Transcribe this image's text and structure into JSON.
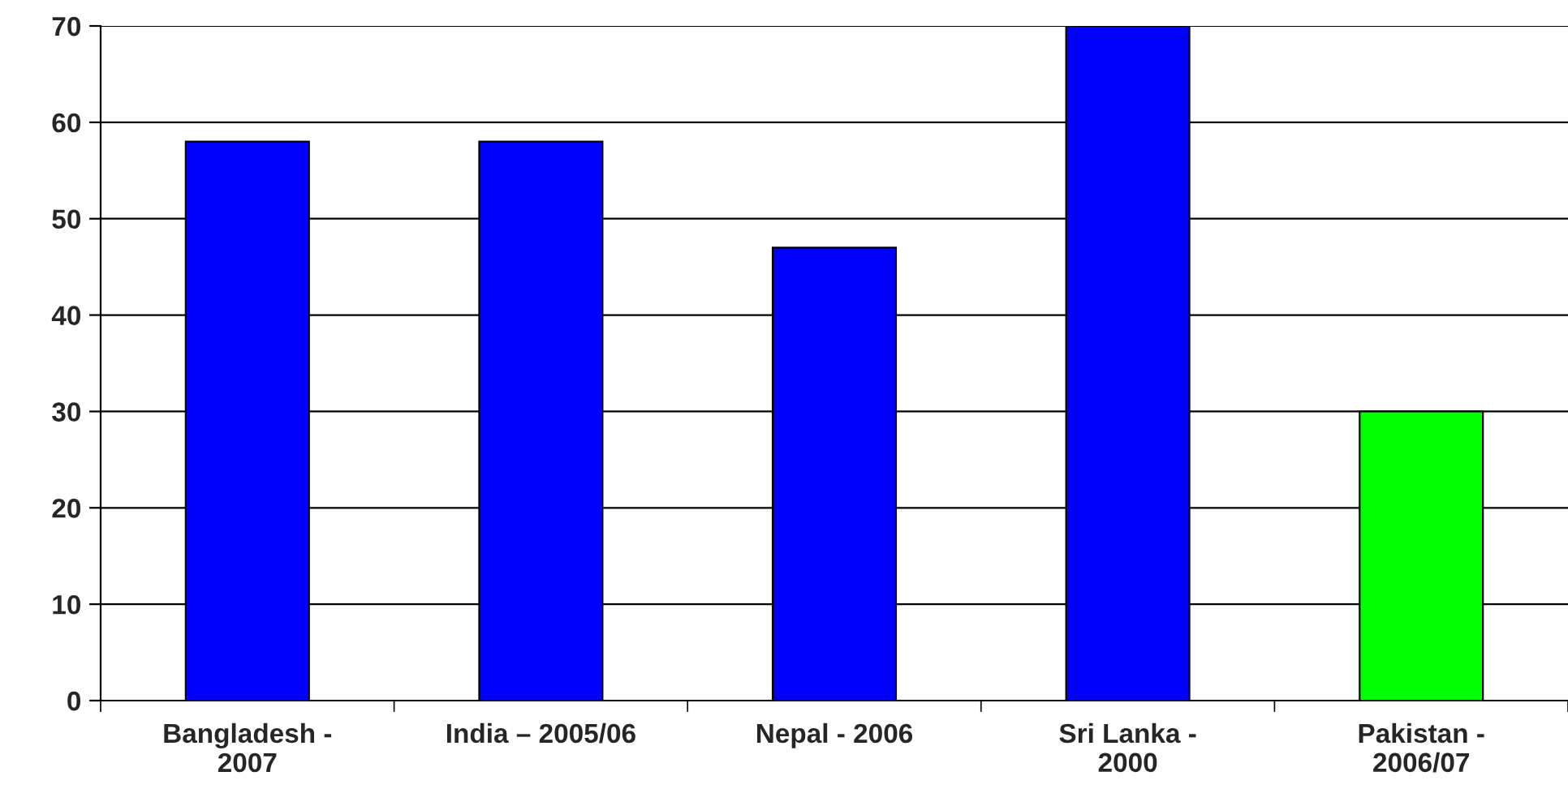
{
  "chart_data": {
    "type": "bar",
    "categories": [
      "Bangladesh -\n2007",
      "India – 2005/06",
      "Nepal - 2006",
      "Sri Lanka -\n2000",
      "Pakistan -\n2006/07"
    ],
    "values": [
      58,
      58,
      47,
      70,
      30
    ],
    "colors": [
      "#0000ff",
      "#0000ff",
      "#0000ff",
      "#0000ff",
      "#00ff00"
    ],
    "ylim": [
      0,
      70
    ],
    "yticks": [
      0,
      10,
      20,
      30,
      40,
      50,
      60,
      70
    ],
    "grid": "y",
    "legend": false
  }
}
